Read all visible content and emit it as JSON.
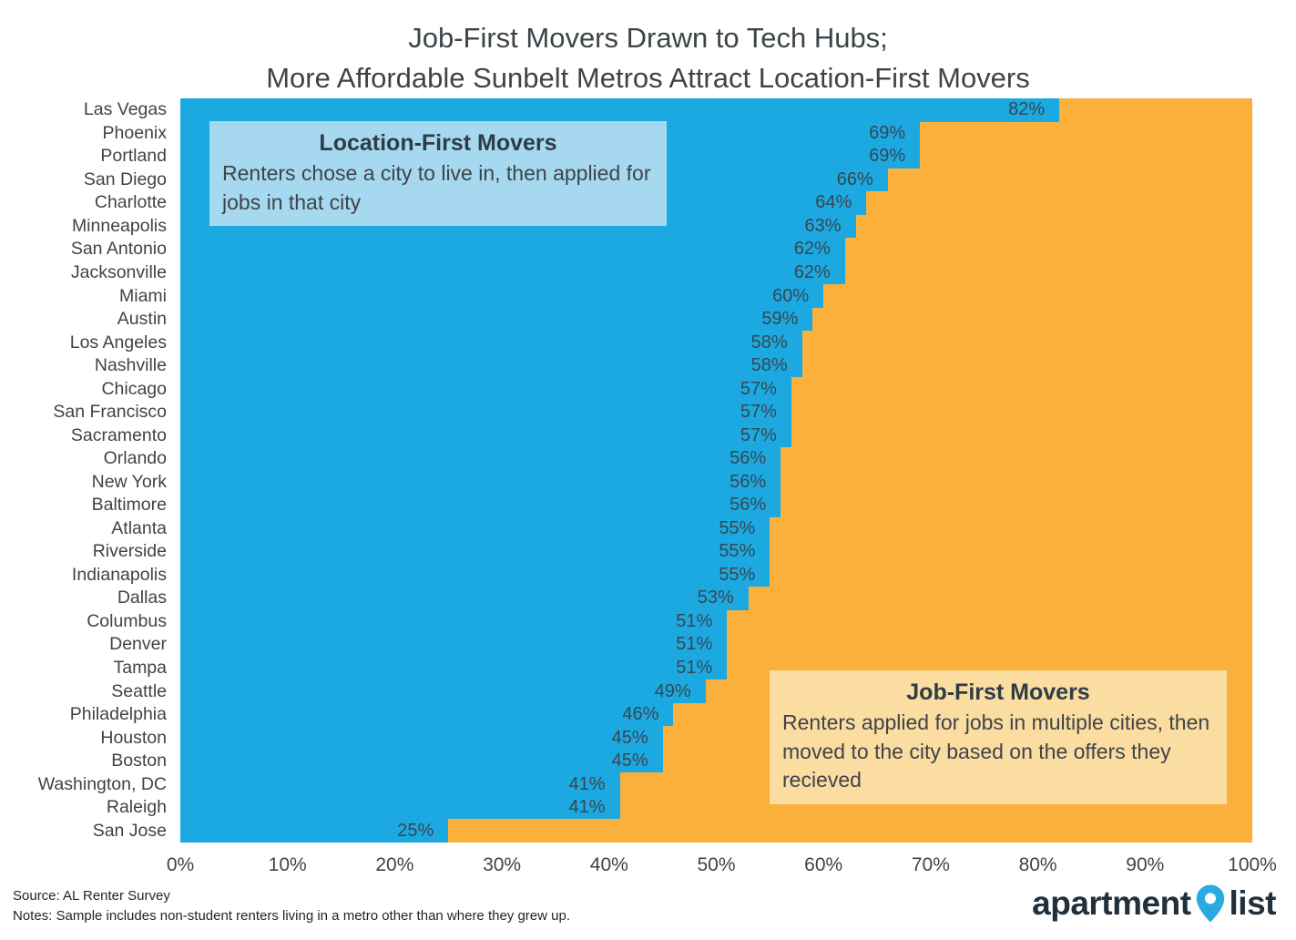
{
  "title": {
    "line1": "Job-First Movers Drawn to Tech Hubs;",
    "line2": "More Affordable Sunbelt Metros Attract Location-First Movers"
  },
  "chart_data": {
    "type": "bar",
    "orientation": "horizontal",
    "stacked": true,
    "xlim": [
      0,
      100
    ],
    "x_ticks": [
      "0%",
      "10%",
      "20%",
      "30%",
      "40%",
      "50%",
      "60%",
      "70%",
      "80%",
      "90%",
      "100%"
    ],
    "categories": [
      "Las Vegas",
      "Phoenix",
      "Portland",
      "San Diego",
      "Charlotte",
      "Minneapolis",
      "San Antonio",
      "Jacksonville",
      "Miami",
      "Austin",
      "Los Angeles",
      "Nashville",
      "Chicago",
      "San Francisco",
      "Sacramento",
      "Orlando",
      "New York",
      "Baltimore",
      "Atlanta",
      "Riverside",
      "Indianapolis",
      "Dallas",
      "Columbus",
      "Denver",
      "Tampa",
      "Seattle",
      "Philadelphia",
      "Houston",
      "Boston",
      "Washington, DC",
      "Raleigh",
      "San Jose"
    ],
    "series": [
      {
        "name": "Location-First Movers",
        "color": "#1CA9E2",
        "values": [
          82,
          69,
          69,
          66,
          64,
          63,
          62,
          62,
          60,
          59,
          58,
          58,
          57,
          57,
          57,
          56,
          56,
          56,
          55,
          55,
          55,
          53,
          51,
          51,
          51,
          49,
          46,
          45,
          45,
          41,
          41,
          25
        ]
      },
      {
        "name": "Job-First Movers",
        "color": "#FBB03B",
        "values": [
          18,
          31,
          31,
          34,
          36,
          37,
          38,
          38,
          40,
          41,
          42,
          42,
          43,
          43,
          43,
          44,
          44,
          44,
          45,
          45,
          45,
          47,
          49,
          49,
          49,
          51,
          54,
          55,
          55,
          59,
          59,
          75
        ]
      }
    ],
    "value_label_format": "percent",
    "grid": false,
    "legend_position": "annotations-in-plot"
  },
  "annotations": {
    "location_first": {
      "title": "Location-First Movers",
      "body": "Renters chose a city to live in, then applied for jobs in that city",
      "bg": "#A6D8EF"
    },
    "job_first": {
      "title": "Job-First Movers",
      "body": "Renters applied for jobs in multiple cities, then moved to the city based on the offers they recieved",
      "bg": "#FCDDA1"
    }
  },
  "footer": {
    "source": "Source: AL Renter Survey",
    "notes": "Notes: Sample includes non-student renters living in a metro other than where they grew up.",
    "logo": {
      "part1": "apartment",
      "part2": "list",
      "pin_color": "#29ABE2"
    }
  }
}
